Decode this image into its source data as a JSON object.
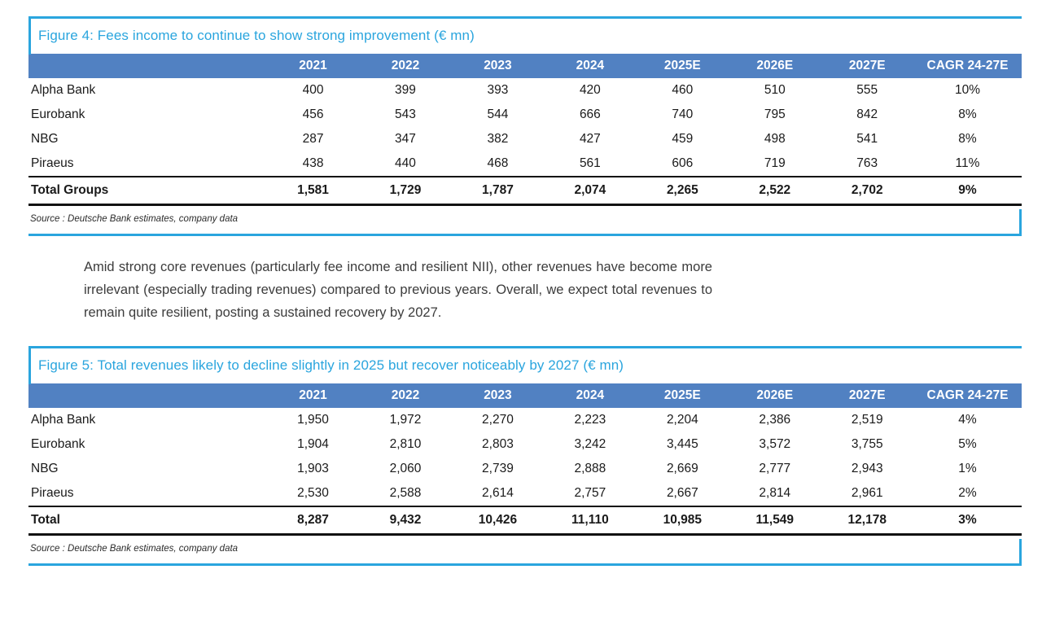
{
  "colors": {
    "accent_blue": "#2AA5DE",
    "table_header_blue": "#5181C2",
    "rule_black": "#111111"
  },
  "body_paragraph": "Amid strong core revenues (particularly fee income and resilient NII), other revenues have become more irrelevant (especially trading revenues) compared to previous years. Overall, we expect total revenues to remain quite resilient, posting a sustained recovery by 2027.",
  "figures": [
    {
      "id": "figure-4",
      "title": "Figure 4: Fees income to continue to show strong improvement (€ mn)",
      "columns": [
        "",
        "2021",
        "2022",
        "2023",
        "2024",
        "2025E",
        "2026E",
        "2027E",
        "CAGR 24-27E"
      ],
      "rows": [
        {
          "label": "Alpha Bank",
          "values": [
            "400",
            "399",
            "393",
            "420",
            "460",
            "510",
            "555",
            "10%"
          ]
        },
        {
          "label": "Eurobank",
          "values": [
            "456",
            "543",
            "544",
            "666",
            "740",
            "795",
            "842",
            "8%"
          ]
        },
        {
          "label": "NBG",
          "values": [
            "287",
            "347",
            "382",
            "427",
            "459",
            "498",
            "541",
            "8%"
          ]
        },
        {
          "label": "Piraeus",
          "values": [
            "438",
            "440",
            "468",
            "561",
            "606",
            "719",
            "763",
            "11%"
          ]
        }
      ],
      "total_row": {
        "label": "Total Groups",
        "values": [
          "1,581",
          "1,729",
          "1,787",
          "2,074",
          "2,265",
          "2,522",
          "2,702",
          "9%"
        ]
      },
      "source": "Source : Deutsche Bank estimates, company data"
    },
    {
      "id": "figure-5",
      "title": "Figure 5: Total revenues likely to decline slightly in 2025 but recover noticeably by 2027 (€ mn)",
      "columns": [
        "",
        "2021",
        "2022",
        "2023",
        "2024",
        "2025E",
        "2026E",
        "2027E",
        "CAGR 24-27E"
      ],
      "rows": [
        {
          "label": "Alpha Bank",
          "values": [
            "1,950",
            "1,972",
            "2,270",
            "2,223",
            "2,204",
            "2,386",
            "2,519",
            "4%"
          ]
        },
        {
          "label": "Eurobank",
          "values": [
            "1,904",
            "2,810",
            "2,803",
            "3,242",
            "3,445",
            "3,572",
            "3,755",
            "5%"
          ]
        },
        {
          "label": "NBG",
          "values": [
            "1,903",
            "2,060",
            "2,739",
            "2,888",
            "2,669",
            "2,777",
            "2,943",
            "1%"
          ]
        },
        {
          "label": "Piraeus",
          "values": [
            "2,530",
            "2,588",
            "2,614",
            "2,757",
            "2,667",
            "2,814",
            "2,961",
            "2%"
          ]
        }
      ],
      "total_row": {
        "label": "Total",
        "values": [
          "8,287",
          "9,432",
          "10,426",
          "11,110",
          "10,985",
          "11,549",
          "12,178",
          "3%"
        ]
      },
      "source": "Source : Deutsche Bank estimates, company data"
    }
  ]
}
